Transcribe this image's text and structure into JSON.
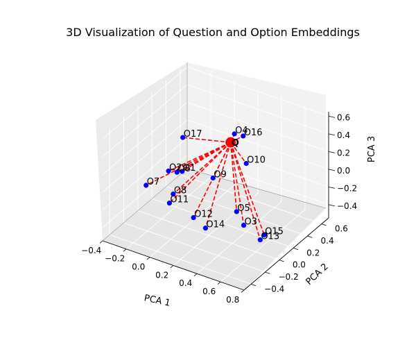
{
  "chart_data": {
    "type": "scatter",
    "title": "3D Visualization of Question and Option Embeddings",
    "xlabel": "PCA 1",
    "ylabel": "PCA 2",
    "zlabel": "PCA 3",
    "x_ticks": [
      "−0.4",
      "−0.2",
      "0.0",
      "0.2",
      "0.4",
      "0.6",
      "0.8"
    ],
    "y_ticks": [
      "−0.4",
      "−0.2",
      "0.0",
      "0.2",
      "0.4",
      "0.6"
    ],
    "z_ticks": [
      "−0.4",
      "−0.2",
      "0.0",
      "0.2",
      "0.4",
      "0.6"
    ],
    "xlim": [
      -0.4,
      0.8
    ],
    "ylim": [
      -0.5,
      0.7
    ],
    "zlim": [
      -0.55,
      0.65
    ],
    "grid": true,
    "colors": {
      "question": "#ff0000",
      "options": "#0000ff",
      "connector": "#ff0000"
    },
    "question": {
      "label": "Q",
      "x": 0.22,
      "y": 0.28,
      "z": 0.32
    },
    "options": [
      {
        "label": "O17",
        "x": -0.09,
        "y": 0.12,
        "z": 0.34
      },
      {
        "label": "O4",
        "x": 0.27,
        "y": 0.25,
        "z": 0.46
      },
      {
        "label": "O16",
        "x": 0.35,
        "y": 0.24,
        "z": 0.48
      },
      {
        "label": "O10",
        "x": 0.4,
        "y": 0.2,
        "z": 0.22
      },
      {
        "label": "O9",
        "x": 0.19,
        "y": 0.08,
        "z": 0.04
      },
      {
        "label": "O1",
        "x": -0.03,
        "y": 0.01,
        "z": 0.06
      },
      {
        "label": "O6",
        "x": -0.08,
        "y": 0.02,
        "z": 0.02
      },
      {
        "label": "O2",
        "x": -0.14,
        "y": 0.0,
        "z": 0.02
      },
      {
        "label": "O8",
        "x": -0.13,
        "y": 0.05,
        "z": -0.27
      },
      {
        "label": "O11",
        "x": -0.12,
        "y": -0.02,
        "z": -0.32
      },
      {
        "label": "O7",
        "x": -0.33,
        "y": 0.0,
        "z": -0.23
      },
      {
        "label": "O5",
        "x": 0.42,
        "y": 0.03,
        "z": -0.2
      },
      {
        "label": "O3",
        "x": 0.54,
        "y": -0.07,
        "z": -0.23
      },
      {
        "label": "O15",
        "x": 0.72,
        "y": -0.08,
        "z": -0.25
      },
      {
        "label": "O13",
        "x": 0.68,
        "y": -0.07,
        "z": -0.33
      },
      {
        "label": "O12",
        "x": 0.09,
        "y": -0.03,
        "z": -0.38
      },
      {
        "label": "O14",
        "x": 0.18,
        "y": -0.01,
        "z": -0.47
      }
    ]
  }
}
